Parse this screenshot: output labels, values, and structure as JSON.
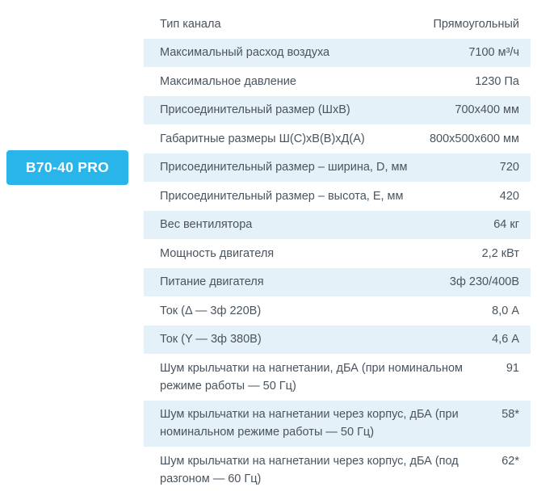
{
  "product": {
    "badge_label": "B70-40 PRO"
  },
  "colors": {
    "badge_bg": "#29b5ea",
    "badge_text": "#ffffff",
    "row_alt_bg": "#e4f1f8",
    "row_bg": "#ffffff",
    "text": "#49545f"
  },
  "table": {
    "rows": [
      {
        "label": "Тип канала",
        "value": "Прямоугольный"
      },
      {
        "label": "Максимальный расход воздуха",
        "value": "7100 м³/ч"
      },
      {
        "label": "Максимальное давление",
        "value": "1230 Па"
      },
      {
        "label": "Присоединительный размер (ШхВ)",
        "value": "700х400 мм"
      },
      {
        "label": "Габаритные размеры Ш(С)хВ(В)хД(А)",
        "value": "800х500х600 мм"
      },
      {
        "label": "Присоединительный размер – ширина, D, мм",
        "value": "720"
      },
      {
        "label": "Присоединительный размер – высота, E, мм",
        "value": "420"
      },
      {
        "label": "Вес вентилятора",
        "value": "64 кг"
      },
      {
        "label": "Мощность двигателя",
        "value": "2,2 кВт"
      },
      {
        "label": "Питание двигателя",
        "value": "3ф 230/400В"
      },
      {
        "label": "Ток (Δ — 3ф 220В)",
        "value": "8,0 А"
      },
      {
        "label": "Ток (Y — 3ф 380В)",
        "value": "4,6 А"
      },
      {
        "label": "Шум крыльчатки на нагнетании, дБА (при номинальном режиме работы — 50 Гц)",
        "value": "91"
      },
      {
        "label": "Шум крыльчатки на нагнетании через корпус, дБА (при номинальном режиме работы — 50 Гц)",
        "value": "58*"
      },
      {
        "label": "Шум крыльчатки на нагнетании через корпус, дБА (под разгоном — 60 Гц)",
        "value": "62*"
      }
    ]
  }
}
